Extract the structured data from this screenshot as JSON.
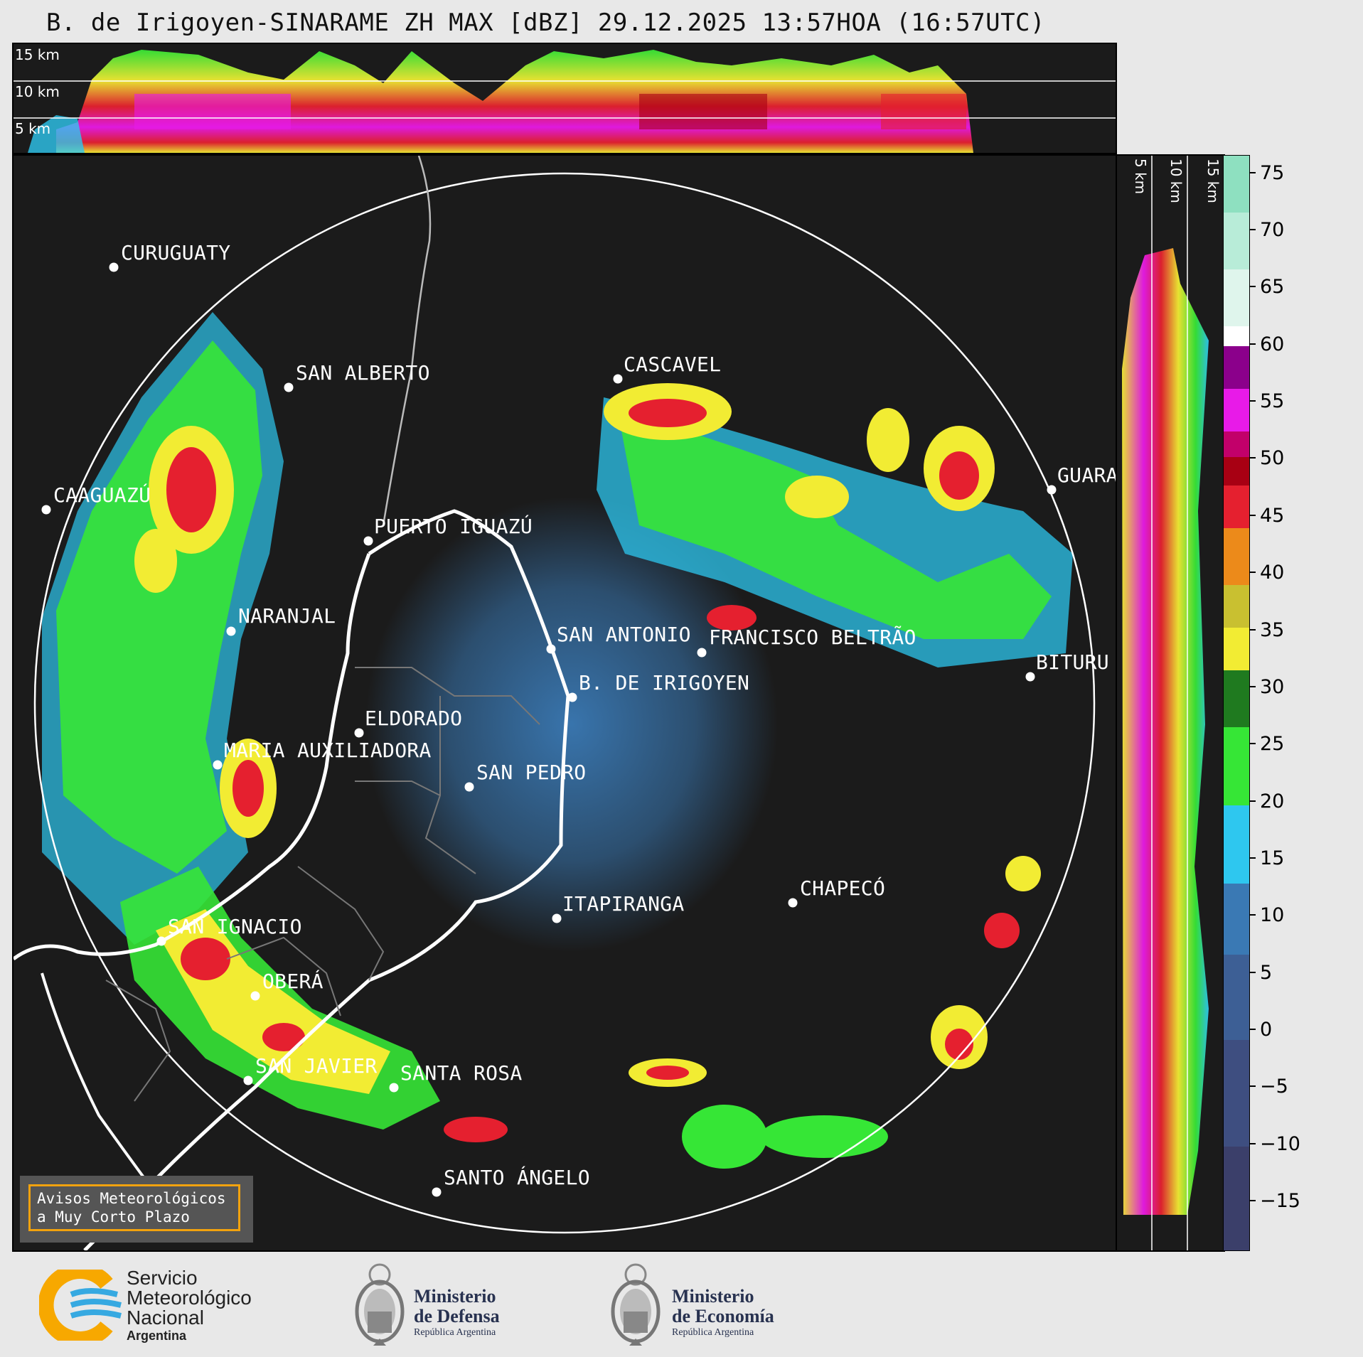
{
  "title": "B. de Irigoyen-SINARAME ZH MAX [dBZ] 29.12.2025 13:57HOA (16:57UTC)",
  "altitude_labels": {
    "top": [
      "15 km",
      "10 km",
      "5 km"
    ],
    "right": [
      "5 km",
      "10 km",
      "15 km"
    ]
  },
  "colorbar": {
    "ticks": [
      "75",
      "70",
      "65",
      "60",
      "55",
      "50",
      "45",
      "40",
      "35",
      "30",
      "25",
      "20",
      "15",
      "10",
      "5",
      "0",
      "−5",
      "−10",
      "−15"
    ],
    "range": [
      -20,
      77
    ],
    "colors": {
      "very_light": "#3b3f6a",
      "light": "#3a79b4",
      "moderate_low": "#2ec7ef",
      "green": "#36e636",
      "dark_green": "#1f7a1f",
      "yellow": "#f2ec33",
      "orange": "#ec8a1a",
      "red": "#e5202f",
      "dark_red": "#a80013",
      "magenta": "#e81ae8",
      "purple": "#8b008b",
      "white": "#ffffff",
      "mint": "#8ee0c0"
    }
  },
  "cities": [
    "CURUGUATY",
    "SAN ALBERTO",
    "CAAGUAZÚ",
    "PUERTO IGUAZÚ",
    "CASCAVEL",
    "GUARA",
    "NARANJAL",
    "SAN ANTONIO",
    "FRANCISCO BELTRÃO",
    "B. DE IRIGOYEN",
    "BITURU",
    "ELDORADO",
    "MARIA AUXILIADORA",
    "SAN PEDRO",
    "CHAPECÓ",
    "ITAPIRANGA",
    "SAN IGNACIO",
    "OBERÁ",
    "SAN JAVIER",
    "SANTA ROSA",
    "SANTO ÁNGELO"
  ],
  "notice": {
    "line1": "Avisos Meteorológicos",
    "line2": "a Muy Corto Plazo"
  },
  "logos": {
    "smn": {
      "line1": "Servicio",
      "line2": "Meteorológico",
      "line3": "Nacional",
      "line4": "Argentina"
    },
    "defensa": {
      "line1": "Ministerio",
      "line2": "de Defensa",
      "line3": "República Argentina"
    },
    "economia": {
      "line1": "Ministerio",
      "line2": "de Economía",
      "line3": "República Argentina"
    }
  }
}
